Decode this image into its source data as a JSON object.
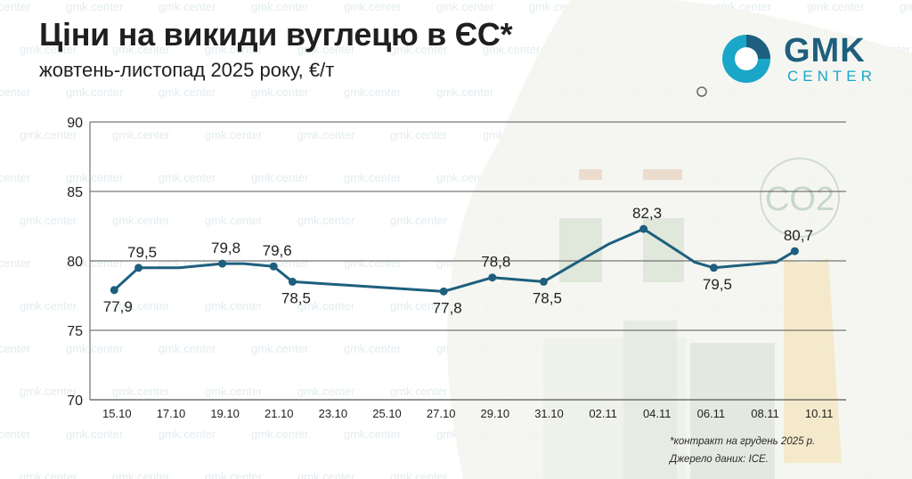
{
  "header": {
    "title": "Ціни на викиди вуглецю в ЄС*",
    "subtitle": "жовтень-листопад 2025 року, €/т"
  },
  "logo": {
    "main": "GMK",
    "sub": "CENTER",
    "watermark": "gmk.center"
  },
  "decoration": {
    "co2_label": "CO2"
  },
  "footnote": {
    "line1": "*контракт на грудень 2025 р.",
    "line2": "Джерело даних: ICE."
  },
  "colors": {
    "line": "#1e5f7d",
    "grid": "#555555",
    "text": "#1f1f1f",
    "logo_dark": "#1e5f7d",
    "logo_light": "#1aa6c9",
    "watermark": "#e3ecef"
  },
  "chart_data": {
    "type": "line",
    "title": "Ціни на викиди вуглецю в ЄС*",
    "subtitle": "жовтень-листопад 2025 року, €/т",
    "ylim": [
      70,
      90
    ],
    "yticks": [
      70,
      75,
      80,
      85,
      90
    ],
    "xlim": [
      0,
      28
    ],
    "grid": true,
    "xticks": [
      {
        "x": 1,
        "label": "15.10"
      },
      {
        "x": 3,
        "label": "17.10"
      },
      {
        "x": 5,
        "label": "19.10"
      },
      {
        "x": 7,
        "label": "21.10"
      },
      {
        "x": 9,
        "label": "23.10"
      },
      {
        "x": 11,
        "label": "25.10"
      },
      {
        "x": 13,
        "label": "27.10"
      },
      {
        "x": 15,
        "label": "29.10"
      },
      {
        "x": 17,
        "label": "31.10"
      },
      {
        "x": 19,
        "label": "02.11"
      },
      {
        "x": 21,
        "label": "04.11"
      },
      {
        "x": 23,
        "label": "06.11"
      },
      {
        "x": 25,
        "label": "08.11"
      },
      {
        "x": 27,
        "label": "10.11"
      }
    ],
    "series": [
      {
        "x": [
          0.9,
          1.8,
          3.3,
          4.9,
          5.7,
          6.8,
          7.5,
          13.1,
          14.9,
          16.8,
          19.2,
          20.5,
          21.3,
          22.4,
          23.1,
          25.4,
          26.1
        ],
        "y": [
          77.9,
          79.5,
          79.5,
          79.8,
          79.8,
          79.6,
          78.5,
          77.8,
          78.8,
          78.5,
          81.2,
          82.3,
          81.3,
          79.9,
          79.5,
          79.9,
          80.7
        ],
        "markers": [
          {
            "x": 0.9,
            "y": 77.9,
            "label": "77,9",
            "pos": "below"
          },
          {
            "x": 1.8,
            "y": 79.5,
            "label": "79,5",
            "pos": "above"
          },
          {
            "x": 4.9,
            "y": 79.8,
            "label": "79,8",
            "pos": "above"
          },
          {
            "x": 6.8,
            "y": 79.6,
            "label": "79,6",
            "pos": "above"
          },
          {
            "x": 7.5,
            "y": 78.5,
            "label": "78,5",
            "pos": "below"
          },
          {
            "x": 13.1,
            "y": 77.8,
            "label": "77,8",
            "pos": "below"
          },
          {
            "x": 14.9,
            "y": 78.8,
            "label": "78,8",
            "pos": "above"
          },
          {
            "x": 16.8,
            "y": 78.5,
            "label": "78,5",
            "pos": "below"
          },
          {
            "x": 20.5,
            "y": 82.3,
            "label": "82,3",
            "pos": "above"
          },
          {
            "x": 23.1,
            "y": 79.5,
            "label": "79,5",
            "pos": "below"
          },
          {
            "x": 26.1,
            "y": 80.7,
            "label": "80,7",
            "pos": "above"
          }
        ]
      }
    ]
  }
}
